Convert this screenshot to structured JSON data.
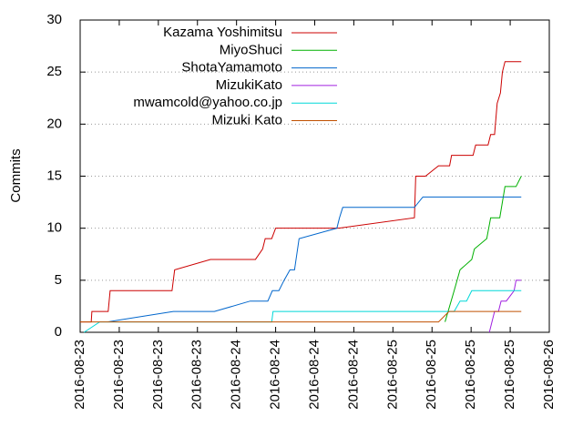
{
  "chart_data": {
    "type": "line",
    "ylabel": "Commits",
    "xlim": [
      0,
      72
    ],
    "xticks": [
      {
        "value": 0,
        "label": "2016-08-23"
      },
      {
        "value": 6,
        "label": "2016-08-23"
      },
      {
        "value": 12,
        "label": "2016-08-23"
      },
      {
        "value": 18,
        "label": "2016-08-23"
      },
      {
        "value": 24,
        "label": "2016-08-24"
      },
      {
        "value": 30,
        "label": "2016-08-24"
      },
      {
        "value": 36,
        "label": "2016-08-24"
      },
      {
        "value": 42,
        "label": "2016-08-24"
      },
      {
        "value": 48,
        "label": "2016-08-25"
      },
      {
        "value": 54,
        "label": "2016-08-25"
      },
      {
        "value": 60,
        "label": "2016-08-25"
      },
      {
        "value": 66,
        "label": "2016-08-25"
      },
      {
        "value": 72,
        "label": "2016-08-26"
      }
    ],
    "ylim": [
      0,
      30
    ],
    "yticks": [
      0,
      5,
      10,
      15,
      20,
      25,
      30
    ],
    "grid": true,
    "legend": "top-left",
    "series": [
      {
        "name": "Kazama Yoshimitsu",
        "color": "#cc0000",
        "x": [
          0,
          1.7,
          1.8,
          4.3,
          4.6,
          14.1,
          14.5,
          20,
          26.9,
          28,
          28.4,
          29.4,
          30,
          39.7,
          51.3,
          51.5,
          53,
          55,
          56.7,
          57,
          60.3,
          60.7,
          62.6,
          63,
          63.6,
          64,
          64.5,
          64.8,
          65.2,
          67.7
        ],
        "values": [
          1,
          1,
          2,
          2,
          4,
          4,
          6,
          7,
          7,
          8,
          9,
          9,
          10,
          10,
          11,
          15,
          15,
          16,
          16,
          17,
          17,
          18,
          18,
          19,
          19,
          22,
          23,
          25,
          26,
          26
        ]
      },
      {
        "name": "MiyoShuci",
        "color": "#00b000",
        "x": [
          56,
          57.4,
          58.3,
          60.1,
          60.5,
          62.4,
          63,
          64.4,
          65.2,
          66.9,
          67.7
        ],
        "values": [
          1,
          4,
          6,
          7,
          8,
          9,
          11,
          11,
          14,
          14,
          15
        ]
      },
      {
        "name": "ShotaYamamoto",
        "color": "#0066cc",
        "x": [
          4.2,
          14.3,
          20.6,
          26.1,
          28.8,
          29.5,
          30.5,
          31.3,
          32.2,
          32.9,
          33.6,
          39.4,
          39.8,
          40.3,
          51.3,
          52.6,
          67.7
        ],
        "values": [
          1,
          2,
          2,
          3,
          3,
          4,
          4,
          5,
          6,
          6,
          9,
          10,
          11,
          12,
          12,
          13,
          13
        ]
      },
      {
        "name": "MizukiKato",
        "color": "#a020e0",
        "x": [
          62.8,
          63.6,
          64.2,
          64.6,
          65.4,
          66.6,
          66.9,
          67.7
        ],
        "values": [
          0,
          2,
          2,
          3,
          3,
          4,
          5,
          5
        ]
      },
      {
        "name": "mwamcold@yahoo.co.jp",
        "color": "#00d8d8",
        "x": [
          0.6,
          3,
          29.4,
          29.6,
          57.4,
          58.3,
          59.3,
          60.1,
          67.7
        ],
        "values": [
          0,
          1,
          1,
          2,
          2,
          3,
          3,
          4,
          4
        ]
      },
      {
        "name": "Mizuki Kato",
        "color": "#c05000",
        "x": [
          0,
          55,
          56.6,
          67.7
        ],
        "values": [
          1,
          1,
          2,
          2
        ]
      }
    ]
  }
}
